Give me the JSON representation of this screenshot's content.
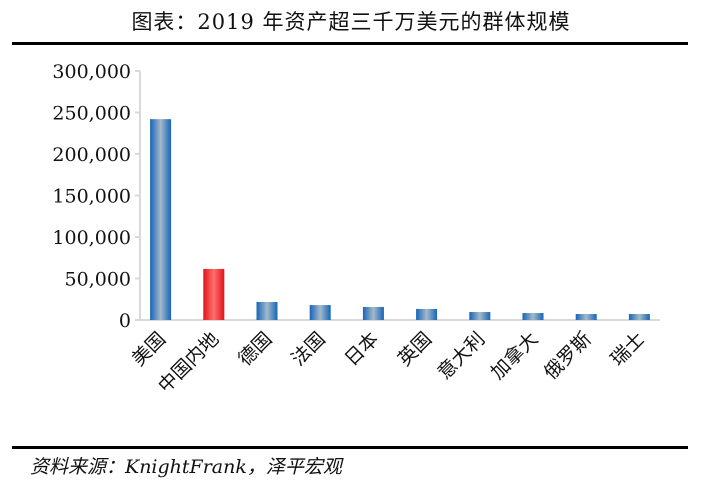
{
  "title": "图表：2019 年资产超三千万美元的群体规模",
  "source": "资料来源：KnightFrank，泽平宏观",
  "chart_data": {
    "type": "bar",
    "title": "图表：2019 年资产超三千万美元的群体规模",
    "xlabel": "",
    "ylabel": "",
    "ylim": [
      0,
      300000
    ],
    "yticks": [
      0,
      50000,
      100000,
      150000,
      200000,
      250000,
      300000
    ],
    "ytick_labels": [
      "0",
      "50,000",
      "100,000",
      "150,000",
      "200,000",
      "250,000",
      "300,000"
    ],
    "categories": [
      "美国",
      "中国内地",
      "德国",
      "法国",
      "日本",
      "英国",
      "意大利",
      "加拿大",
      "俄罗斯",
      "瑞士"
    ],
    "values": [
      242000,
      61500,
      21700,
      18000,
      15700,
      13300,
      9600,
      8400,
      7200,
      7200
    ],
    "colors": [
      "#1f6fb8",
      "#e8262c",
      "#1f6fb8",
      "#1f6fb8",
      "#1f6fb8",
      "#1f6fb8",
      "#1f6fb8",
      "#1f6fb8",
      "#1f6fb8",
      "#1f6fb8"
    ],
    "grid": false
  }
}
